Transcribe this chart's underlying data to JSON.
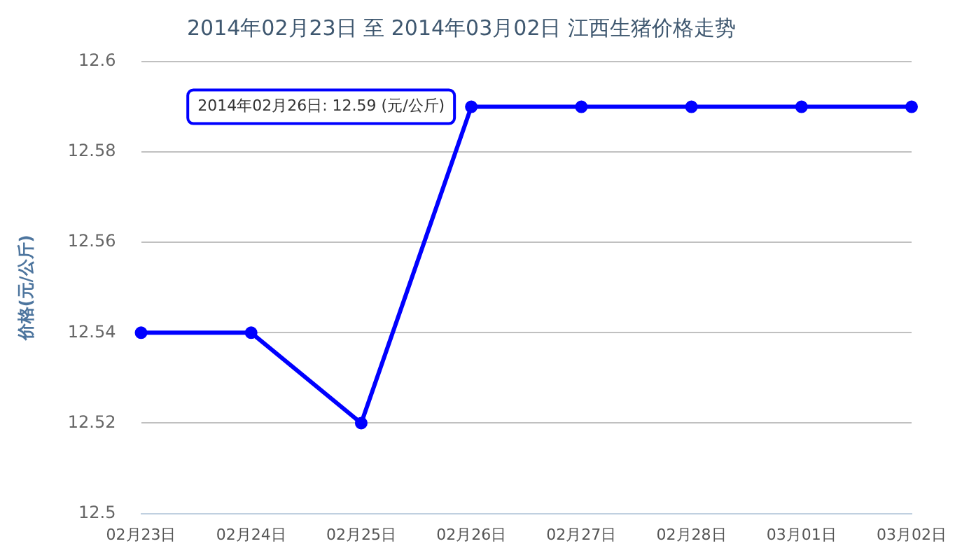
{
  "chart_data": {
    "type": "line",
    "title": "2014年02月23日 至 2014年03月02日 江西生猪价格走势",
    "ylabel": "价格(元/公斤)",
    "categories": [
      "02月23日",
      "02月24日",
      "02月25日",
      "02月26日",
      "02月27日",
      "02月28日",
      "03月01日",
      "03月02日"
    ],
    "series": [
      {
        "color": "#0000ff",
        "values": [
          12.54,
          12.54,
          12.52,
          12.59,
          12.59,
          12.59,
          12.59,
          12.59
        ]
      }
    ],
    "ylim": [
      12.5,
      12.6
    ],
    "yticks": [
      12.5,
      12.52,
      12.54,
      12.56,
      12.58,
      12.6
    ],
    "grid": "y",
    "marker": "circle",
    "line_style": "solid",
    "legend": false,
    "annotations": [
      {
        "text": "2014年02月26日: 12.59 (元/公斤)",
        "x": "02月26日",
        "y": 12.59
      }
    ]
  }
}
